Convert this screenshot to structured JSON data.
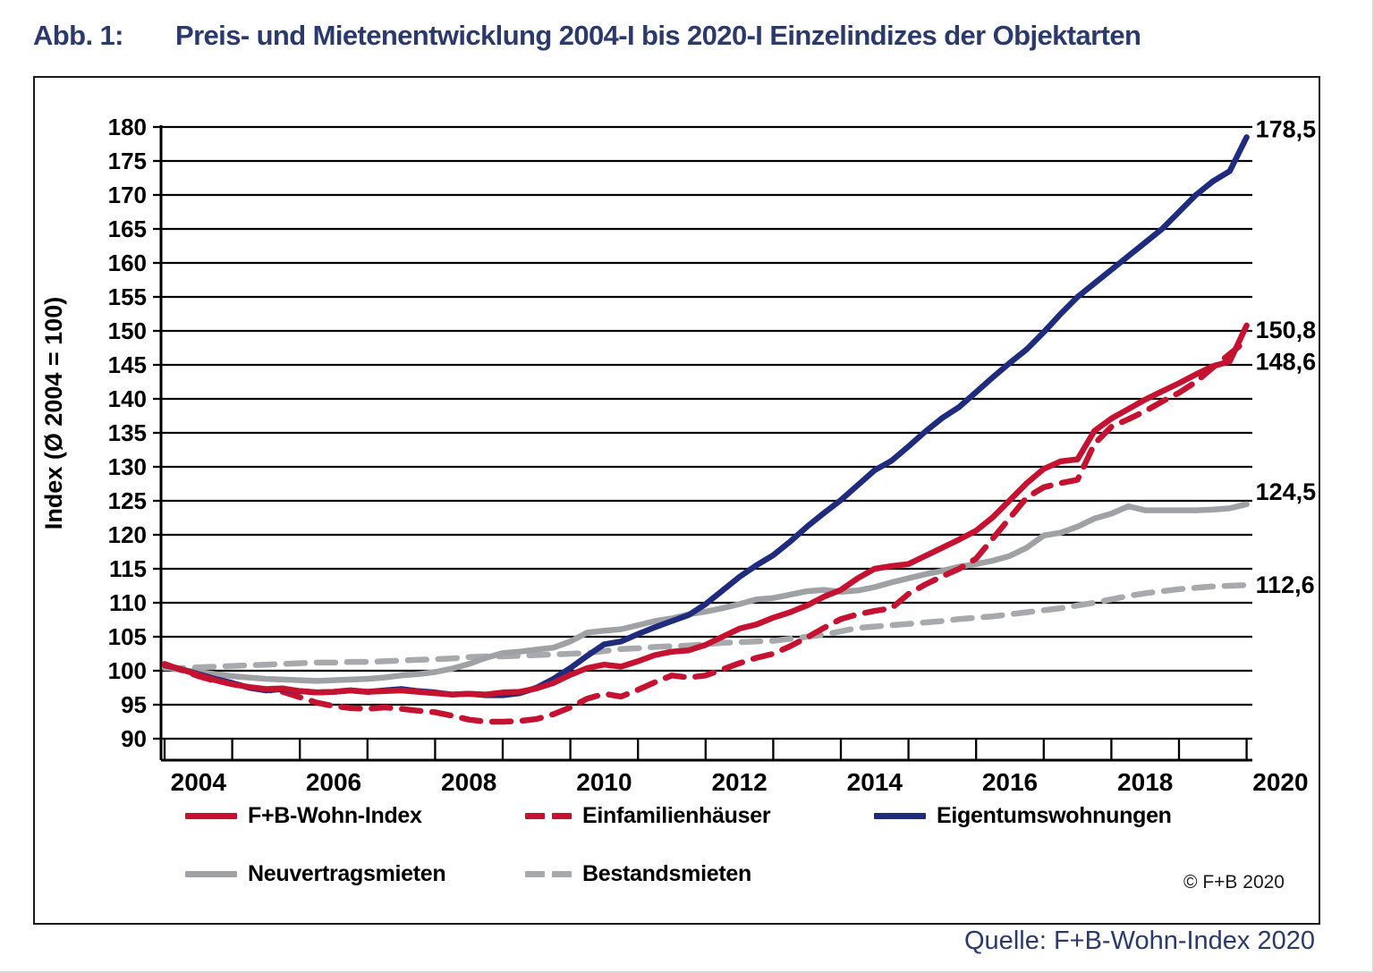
{
  "figure": {
    "label": "Abb. 1:",
    "title": "Preis- und Mietenentwicklung 2004-I bis 2020-I Einzelindizes der Objektarten",
    "title_color": "#2B3A6B"
  },
  "source_note": "Quelle: F+B-Wohn-Index 2020",
  "copyright": "© F+B  2020",
  "chart_data": {
    "type": "line",
    "title": "Preis- und Mietenentwicklung 2004-I bis 2020-I Einzelindizes der Objektarten",
    "xlabel": "",
    "ylabel": "Index (Ø 2004 = 100)",
    "ylim": [
      90,
      180
    ],
    "ytick_step": 5,
    "grid": "horizontal-black",
    "legend_position": "below",
    "x_start": "2004-Q1",
    "x_end": "2020-Q1",
    "frequency": "quarterly",
    "points_per_series": 65,
    "x_tick_labels": [
      "2004",
      "2006",
      "2008",
      "2010",
      "2012",
      "2014",
      "2016",
      "2018",
      "2020"
    ],
    "series": [
      {
        "name": "F+B-Wohn-Index",
        "key": "fb-wohn-index",
        "color": "#C41230",
        "style": "solid",
        "end_label": "150,8",
        "label_dy": 5,
        "values": [
          100.9,
          100.2,
          99.4,
          98.6,
          98.0,
          97.6,
          97.3,
          97.4,
          97.0,
          96.8,
          96.9,
          97.1,
          96.9,
          97.0,
          97.1,
          96.9,
          96.7,
          96.5,
          96.6,
          96.5,
          96.8,
          96.9,
          97.4,
          98.2,
          99.4,
          100.4,
          100.9,
          100.6,
          101.4,
          102.3,
          102.8,
          103.0,
          103.8,
          105.0,
          106.2,
          106.8,
          107.8,
          108.6,
          109.6,
          110.9,
          111.9,
          113.6,
          115.0,
          115.4,
          115.7,
          116.9,
          118.1,
          119.3,
          120.6,
          122.6,
          125.1,
          127.6,
          129.7,
          130.8,
          131.1,
          135.3,
          137.1,
          138.5,
          139.9,
          141.1,
          142.3,
          143.6,
          144.8,
          145.5,
          150.8
        ]
      },
      {
        "name": "Einfamilienhäuser",
        "key": "einfamilienhaeuser",
        "color": "#C41230",
        "style": "dashed",
        "end_label": "148,6",
        "label_dy": 24,
        "values": [
          101.0,
          100.1,
          99.2,
          98.5,
          98.1,
          97.6,
          97.2,
          96.9,
          96.1,
          95.3,
          94.8,
          94.5,
          94.4,
          94.6,
          94.4,
          94.1,
          93.9,
          93.4,
          92.8,
          92.5,
          92.5,
          92.6,
          92.9,
          93.6,
          94.6,
          95.9,
          96.6,
          96.2,
          97.2,
          98.3,
          99.3,
          99.0,
          99.3,
          100.2,
          101.1,
          101.9,
          102.5,
          103.6,
          104.9,
          106.3,
          107.6,
          108.3,
          108.8,
          109.2,
          111.3,
          112.7,
          113.9,
          115.0,
          116.5,
          119.5,
          122.5,
          125.5,
          127.0,
          127.6,
          128.1,
          133.4,
          135.9,
          137.0,
          138.2,
          139.6,
          140.9,
          142.5,
          144.6,
          146.6,
          148.6
        ]
      },
      {
        "name": "Eigentumswohnungen",
        "key": "eigentumswohnungen",
        "color": "#1F2B7D",
        "style": "solid",
        "end_label": "178,5",
        "label_dy": -9,
        "values": [
          100.8,
          100.2,
          99.5,
          98.8,
          98.2,
          97.5,
          97.1,
          97.3,
          97.0,
          96.8,
          96.9,
          97.1,
          96.9,
          97.1,
          97.3,
          97.0,
          96.8,
          96.5,
          96.6,
          96.4,
          96.4,
          96.7,
          97.5,
          98.8,
          100.4,
          102.2,
          103.9,
          104.3,
          105.4,
          106.4,
          107.3,
          108.2,
          109.8,
          111.8,
          113.8,
          115.5,
          117.0,
          119.0,
          121.2,
          123.2,
          125.1,
          127.3,
          129.5,
          130.9,
          133.0,
          135.2,
          137.2,
          138.8,
          141.0,
          143.2,
          145.3,
          147.3,
          149.8,
          152.5,
          155.0,
          157.0,
          159.0,
          161.0,
          163.0,
          165.0,
          167.5,
          170.0,
          172.0,
          173.5,
          178.5
        ]
      },
      {
        "name": "Neuvertragsmieten",
        "key": "neuvertragsmieten",
        "color": "#9FA1A4",
        "style": "solid",
        "end_label": "124,5",
        "label_dy": -14,
        "values": [
          100.5,
          100.1,
          99.8,
          99.5,
          99.2,
          99.0,
          98.8,
          98.7,
          98.6,
          98.5,
          98.6,
          98.7,
          98.8,
          99.0,
          99.3,
          99.5,
          99.8,
          100.3,
          101.0,
          101.9,
          102.6,
          102.8,
          103.1,
          103.4,
          104.3,
          105.6,
          105.9,
          106.1,
          106.7,
          107.3,
          107.7,
          108.3,
          108.7,
          109.2,
          109.8,
          110.5,
          110.7,
          111.2,
          111.7,
          111.9,
          111.6,
          111.8,
          112.3,
          113.0,
          113.6,
          114.2,
          114.7,
          115.3,
          115.7,
          116.2,
          116.9,
          118.1,
          119.9,
          120.3,
          121.2,
          122.4,
          123.1,
          124.2,
          123.6,
          123.6,
          123.6,
          123.6,
          123.7,
          123.9,
          124.5
        ]
      },
      {
        "name": "Bestandsmieten",
        "key": "bestandsmieten",
        "color": "#A7A9AC",
        "style": "dashed",
        "end_label": "112,6",
        "label_dy": 0,
        "values": [
          100.4,
          100.4,
          100.5,
          100.6,
          100.7,
          100.8,
          100.9,
          101.0,
          101.1,
          101.2,
          101.2,
          101.3,
          101.3,
          101.4,
          101.5,
          101.6,
          101.7,
          101.8,
          102.0,
          102.1,
          102.1,
          102.2,
          102.3,
          102.4,
          102.5,
          102.6,
          102.9,
          103.2,
          103.3,
          103.5,
          103.6,
          103.7,
          103.9,
          104.1,
          104.2,
          104.3,
          104.4,
          104.7,
          105.0,
          105.3,
          105.8,
          106.3,
          106.5,
          106.7,
          106.9,
          107.1,
          107.3,
          107.6,
          107.8,
          108.0,
          108.3,
          108.6,
          108.9,
          109.2,
          109.6,
          110.0,
          110.5,
          111.0,
          111.4,
          111.7,
          112.0,
          112.2,
          112.4,
          112.5,
          112.6
        ]
      }
    ]
  },
  "legend": {
    "row1": [
      "F+B-Wohn-Index",
      "Einfamilienhäuser",
      "Eigentumswohnungen"
    ],
    "row2": [
      "Neuvertragsmieten",
      "Bestandsmieten"
    ]
  }
}
